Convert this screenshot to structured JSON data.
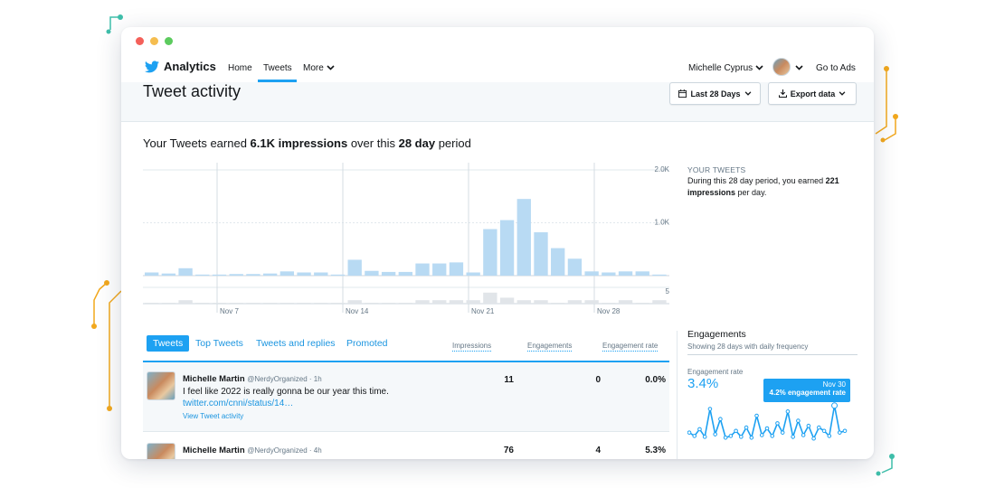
{
  "nav": {
    "brand": "Analytics",
    "links": [
      "Home",
      "Tweets",
      "More"
    ],
    "user": "Michelle Cyprus",
    "go_to_ads": "Go to Ads"
  },
  "header": {
    "title": "Tweet activity",
    "date_button": "Last 28 Days",
    "export_button": "Export data"
  },
  "summary": {
    "prefix": "Your Tweets earned",
    "impressions": "6.1K impressions",
    "middle": "over this",
    "period": "28 day",
    "suffix": "period"
  },
  "side": {
    "heading": "YOUR TWEETS",
    "text_prefix": "During this 28 day period, you earned",
    "value": "221",
    "text_suffix_bold": "impressions",
    "text_suffix": "per day."
  },
  "chart_data": {
    "type": "bar",
    "x_tick_labels": [
      "Nov 7",
      "Nov 14",
      "Nov 21",
      "Nov 28"
    ],
    "y_tick_labels": [
      "2.0K",
      "1.0K"
    ],
    "secondary_y_tick_labels": [
      "5"
    ],
    "ylim": [
      0,
      2000
    ],
    "series": [
      {
        "values": [
          60,
          40,
          140,
          20,
          20,
          30,
          30,
          40,
          80,
          60,
          60,
          20,
          300,
          90,
          70,
          70,
          230,
          230,
          250,
          60,
          880,
          1050,
          1450,
          820,
          520,
          320,
          80,
          60,
          80,
          80,
          20
        ]
      },
      {
        "values": [
          0,
          0,
          1,
          0,
          0,
          0,
          0,
          0,
          0,
          0,
          0,
          0,
          1,
          0,
          0,
          0,
          1,
          1,
          1,
          1,
          4,
          2,
          1,
          1,
          0,
          1,
          1,
          0,
          1,
          0,
          1
        ]
      }
    ],
    "grid": true
  },
  "tabs": [
    "Tweets",
    "Top Tweets",
    "Tweets and replies",
    "Promoted"
  ],
  "columns": [
    "Impressions",
    "Engagements",
    "Engagement rate"
  ],
  "tweets": [
    {
      "name": "Michelle Martin",
      "handle": "@NerdyOrganized · 1h",
      "text": "I feel like 2022 is really gonna be our year this time.",
      "link": "twitter.com/cnni/status/14…",
      "action": "View Tweet activity",
      "impressions": "11",
      "engagements": "0",
      "rate": "0.0%"
    },
    {
      "name": "Michelle Martin",
      "handle": "@NerdyOrganized · 4h",
      "impressions": "76",
      "engagements": "4",
      "rate": "5.3%"
    }
  ],
  "engagements": {
    "title": "Engagements",
    "subtitle": "Showing 28 days with daily frequency",
    "rate_label": "Engagement rate",
    "rate_value": "3.4%",
    "tooltip_date": "Nov 30",
    "tooltip_value": "4.2% engagement rate",
    "sparkline": [
      1.0,
      0.6,
      1.4,
      0.5,
      3.8,
      0.8,
      2.6,
      0.4,
      0.6,
      1.2,
      0.5,
      1.6,
      0.4,
      3.0,
      0.7,
      1.5,
      0.6,
      2.1,
      1.0,
      3.5,
      0.5,
      2.4,
      0.7,
      1.8,
      0.3,
      1.6,
      1.2,
      0.6,
      4.2,
      1.0,
      1.2
    ]
  },
  "colors": {
    "accent": "#1da1f2",
    "bar": "#b8daf3",
    "bar_secondary": "#e1e5e9",
    "deco_teal": "#3fbfab",
    "deco_orange": "#f2a81d"
  }
}
